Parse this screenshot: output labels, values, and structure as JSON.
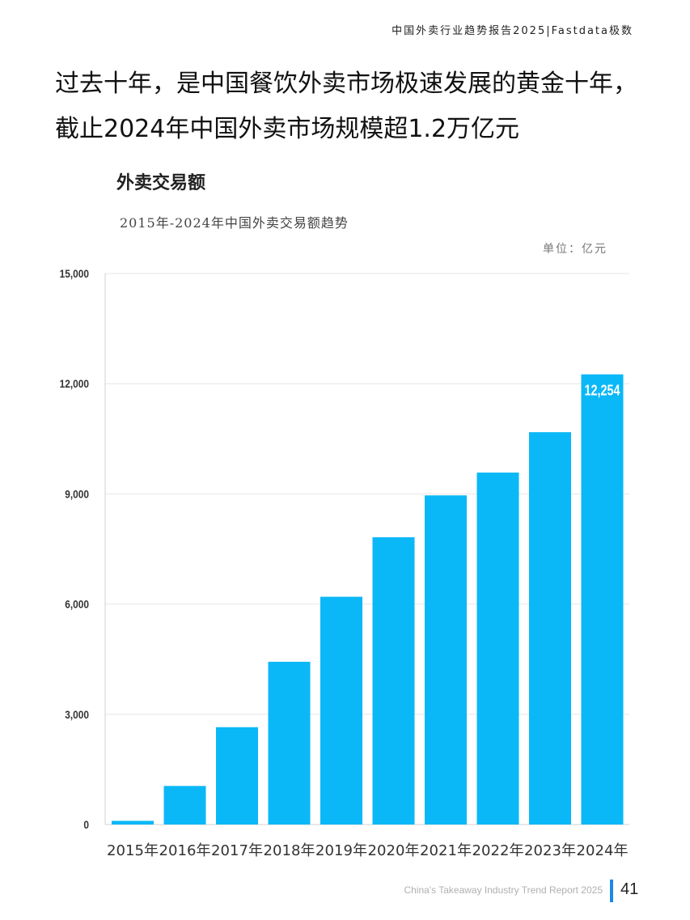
{
  "header": {
    "tag": "中国外卖行业趋势报告2025|Fastdata极数"
  },
  "headline": "过去十年，是中国餐饮外卖市场极速发展的黄金十年，截止2024年中国外卖市场规模超1.2万亿元",
  "chart_heading": "外卖交易额",
  "footer": {
    "report_name": "China's Takeaway Industry Trend Report 2025",
    "page_number": "41"
  },
  "colors": {
    "bar": "#0ab8f7",
    "grid": "#e6e6e6",
    "accent": "#1e88e5",
    "bar_label": "#ffffff"
  },
  "chart_data": {
    "type": "bar",
    "subtitle": "2015年-2024年中国外卖交易额趋势",
    "unit": "单位：亿元",
    "categories": [
      "2015年",
      "2016年",
      "2017年",
      "2018年",
      "2019年",
      "2020年",
      "2021年",
      "2022年",
      "2023年",
      "2024年"
    ],
    "values": [
      100,
      1050,
      2650,
      4430,
      6200,
      7820,
      8960,
      9580,
      10680,
      12254
    ],
    "data_labels": [
      {
        "index": 9,
        "text": "12,254"
      }
    ],
    "ylim": [
      0,
      15000
    ],
    "yticks": [
      0,
      3000,
      6000,
      9000,
      12000,
      15000
    ],
    "ytick_labels": [
      "0",
      "3,000",
      "6,000",
      "9,000",
      "12,000",
      "15,000"
    ],
    "grid": true
  }
}
